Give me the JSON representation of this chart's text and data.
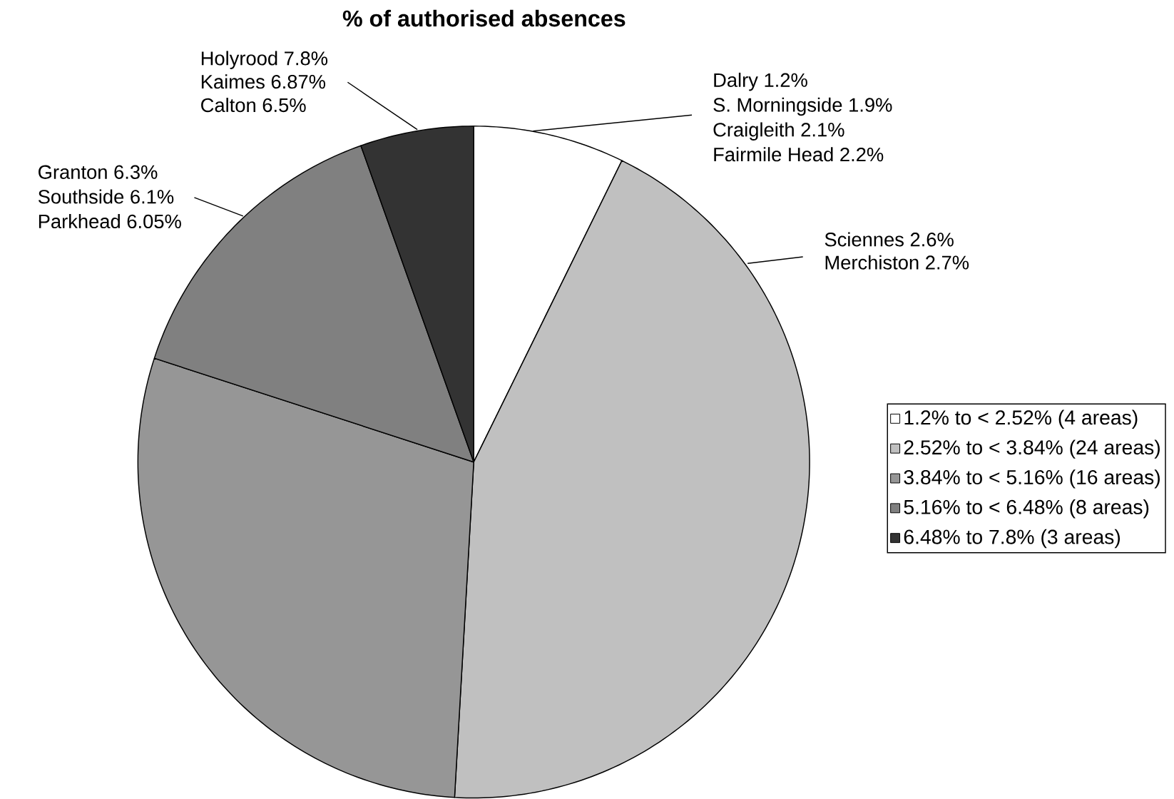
{
  "chart_data": {
    "type": "pie",
    "title": "% of authorised absences",
    "categories": [
      "1.2% to < 2.52% (4 areas)",
      "2.52% to < 3.84% (24 areas)",
      "3.84% to < 5.16% (16 areas)",
      "5.16% to < 6.48% (8 areas)",
      "6.48% to 7.8% (3 areas)"
    ],
    "values": [
      4,
      24,
      16,
      8,
      3
    ],
    "colors": [
      "#ffffff",
      "#c0c0c0",
      "#969696",
      "#808080",
      "#333333"
    ],
    "legend": "right",
    "annotations": [
      "Holyrood 7.8%",
      "Kaimes 6.87%",
      "Calton 6.5%",
      "Dalry 1.2%",
      "S. Morningside 1.9%",
      "Craigleith 2.1%",
      "Fairmile Head 2.2%",
      "Granton 6.3%",
      "Southside 6.1%",
      "Parkhead 6.05%",
      "Sciennes 2.6%",
      "Merchiston 2.7%"
    ]
  }
}
